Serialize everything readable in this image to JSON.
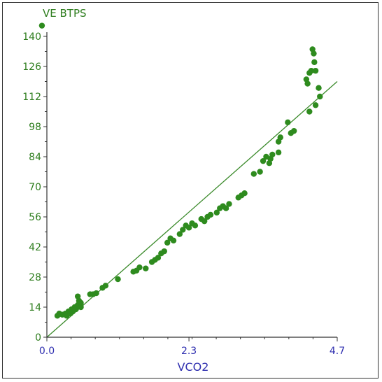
{
  "chart_data": {
    "type": "scatter",
    "xlabel": "VCO2",
    "ylabel": "VE BTPS",
    "xlim": [
      0,
      4.7
    ],
    "ylim": [
      0,
      140
    ],
    "yticks": [
      "0",
      "14",
      "28",
      "42",
      "56",
      "70",
      "84",
      "98",
      "112",
      "126",
      "140"
    ],
    "xticks": [
      "0.0",
      "2.3",
      "4.7"
    ],
    "colors": {
      "points": "#2e8b1e",
      "fit_line": "#3a8a2a",
      "y_text": "#2e7d1e",
      "x_text": "#3030b0",
      "axis": "#333333"
    },
    "fit_line": {
      "x": [
        0.0,
        4.7
      ],
      "y": [
        0,
        119
      ]
    },
    "points": [
      {
        "x": -0.08,
        "y": 145
      },
      {
        "x": 0.17,
        "y": 10
      },
      {
        "x": 0.2,
        "y": 11
      },
      {
        "x": 0.25,
        "y": 10.5
      },
      {
        "x": 0.3,
        "y": 11
      },
      {
        "x": 0.32,
        "y": 10
      },
      {
        "x": 0.35,
        "y": 12
      },
      {
        "x": 0.38,
        "y": 11
      },
      {
        "x": 0.4,
        "y": 13
      },
      {
        "x": 0.42,
        "y": 12
      },
      {
        "x": 0.45,
        "y": 14
      },
      {
        "x": 0.47,
        "y": 13
      },
      {
        "x": 0.5,
        "y": 15
      },
      {
        "x": 0.5,
        "y": 19
      },
      {
        "x": 0.52,
        "y": 17
      },
      {
        "x": 0.55,
        "y": 16
      },
      {
        "x": 0.55,
        "y": 14
      },
      {
        "x": 0.7,
        "y": 20
      },
      {
        "x": 0.75,
        "y": 20
      },
      {
        "x": 0.8,
        "y": 20.5
      },
      {
        "x": 0.9,
        "y": 23
      },
      {
        "x": 0.95,
        "y": 24
      },
      {
        "x": 1.15,
        "y": 27
      },
      {
        "x": 1.4,
        "y": 30.5
      },
      {
        "x": 1.45,
        "y": 31
      },
      {
        "x": 1.5,
        "y": 32.5
      },
      {
        "x": 1.6,
        "y": 32
      },
      {
        "x": 1.7,
        "y": 35
      },
      {
        "x": 1.75,
        "y": 36
      },
      {
        "x": 1.8,
        "y": 37
      },
      {
        "x": 1.85,
        "y": 39
      },
      {
        "x": 1.9,
        "y": 40
      },
      {
        "x": 1.95,
        "y": 44
      },
      {
        "x": 2.0,
        "y": 46
      },
      {
        "x": 2.05,
        "y": 45
      },
      {
        "x": 2.15,
        "y": 48
      },
      {
        "x": 2.2,
        "y": 50
      },
      {
        "x": 2.25,
        "y": 52
      },
      {
        "x": 2.3,
        "y": 51
      },
      {
        "x": 2.35,
        "y": 53
      },
      {
        "x": 2.4,
        "y": 52
      },
      {
        "x": 2.5,
        "y": 55
      },
      {
        "x": 2.55,
        "y": 54
      },
      {
        "x": 2.6,
        "y": 56
      },
      {
        "x": 2.65,
        "y": 57
      },
      {
        "x": 2.75,
        "y": 58
      },
      {
        "x": 2.8,
        "y": 60
      },
      {
        "x": 2.85,
        "y": 61
      },
      {
        "x": 2.9,
        "y": 60
      },
      {
        "x": 2.95,
        "y": 62
      },
      {
        "x": 3.1,
        "y": 65
      },
      {
        "x": 3.15,
        "y": 66
      },
      {
        "x": 3.2,
        "y": 67
      },
      {
        "x": 3.35,
        "y": 76
      },
      {
        "x": 3.45,
        "y": 77
      },
      {
        "x": 3.5,
        "y": 82
      },
      {
        "x": 3.55,
        "y": 84
      },
      {
        "x": 3.6,
        "y": 81
      },
      {
        "x": 3.62,
        "y": 83
      },
      {
        "x": 3.65,
        "y": 85
      },
      {
        "x": 3.75,
        "y": 86
      },
      {
        "x": 3.75,
        "y": 91
      },
      {
        "x": 3.78,
        "y": 93
      },
      {
        "x": 3.9,
        "y": 100
      },
      {
        "x": 3.95,
        "y": 95
      },
      {
        "x": 4.0,
        "y": 96
      },
      {
        "x": 4.2,
        "y": 120
      },
      {
        "x": 4.22,
        "y": 118
      },
      {
        "x": 4.25,
        "y": 123
      },
      {
        "x": 4.25,
        "y": 105
      },
      {
        "x": 4.28,
        "y": 124
      },
      {
        "x": 4.3,
        "y": 134
      },
      {
        "x": 4.32,
        "y": 132
      },
      {
        "x": 4.33,
        "y": 128
      },
      {
        "x": 4.35,
        "y": 124
      },
      {
        "x": 4.35,
        "y": 108
      },
      {
        "x": 4.4,
        "y": 116
      },
      {
        "x": 4.42,
        "y": 112
      }
    ]
  }
}
